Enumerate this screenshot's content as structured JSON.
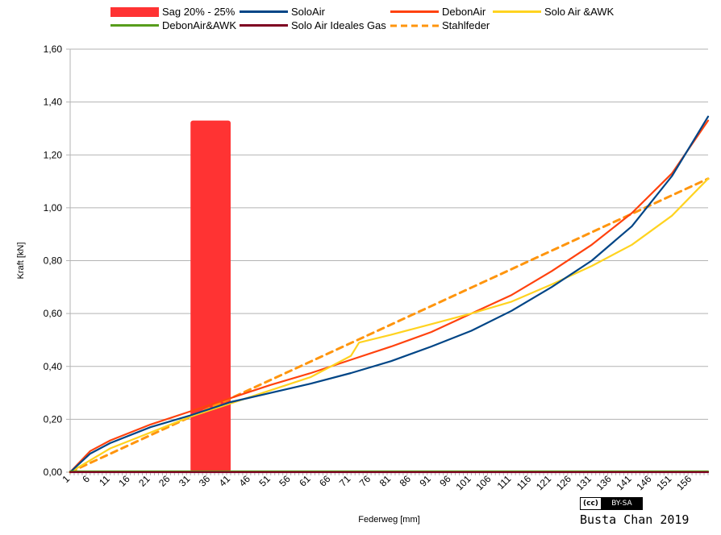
{
  "chart_data": {
    "type": "line",
    "xlabel": "Federweg [mm]",
    "ylabel": "Kraft [kN]",
    "xlim": [
      1,
      160
    ],
    "ylim": [
      0,
      1.6
    ],
    "y_ticks": [
      "0,00",
      "0,20",
      "0,40",
      "0,60",
      "0,80",
      "1,00",
      "1,20",
      "1,40",
      "1,60"
    ],
    "x_ticks": [
      "1",
      "6",
      "11",
      "16",
      "21",
      "26",
      "31",
      "36",
      "41",
      "46",
      "51",
      "56",
      "61",
      "66",
      "71",
      "76",
      "81",
      "86",
      "91",
      "96",
      "101",
      "106",
      "111",
      "116",
      "121",
      "126",
      "131",
      "136",
      "141",
      "146",
      "151",
      "156"
    ],
    "grid": "horizontal",
    "legend_position": "top",
    "sag_band": {
      "name": "Sag 20% - 25%",
      "x_from": 31,
      "x_to": 41,
      "y_to": 1.33,
      "color": "#ff3333"
    },
    "series": [
      {
        "name": "SoloAir",
        "color": "#004586",
        "style": "solid",
        "points": [
          [
            1,
            0.0
          ],
          [
            6,
            0.07
          ],
          [
            11,
            0.11
          ],
          [
            21,
            0.17
          ],
          [
            31,
            0.215
          ],
          [
            41,
            0.265
          ],
          [
            51,
            0.3
          ],
          [
            61,
            0.335
          ],
          [
            71,
            0.375
          ],
          [
            81,
            0.42
          ],
          [
            91,
            0.475
          ],
          [
            101,
            0.535
          ],
          [
            111,
            0.61
          ],
          [
            121,
            0.7
          ],
          [
            131,
            0.8
          ],
          [
            141,
            0.93
          ],
          [
            151,
            1.12
          ],
          [
            157,
            1.27
          ],
          [
            160,
            1.345
          ]
        ]
      },
      {
        "name": "DebonAir",
        "color": "#ff420e",
        "style": "solid",
        "points": [
          [
            1,
            0.0
          ],
          [
            6,
            0.08
          ],
          [
            11,
            0.12
          ],
          [
            21,
            0.18
          ],
          [
            31,
            0.23
          ],
          [
            41,
            0.28
          ],
          [
            51,
            0.33
          ],
          [
            61,
            0.375
          ],
          [
            71,
            0.425
          ],
          [
            81,
            0.475
          ],
          [
            91,
            0.53
          ],
          [
            101,
            0.6
          ],
          [
            111,
            0.67
          ],
          [
            121,
            0.76
          ],
          [
            131,
            0.86
          ],
          [
            141,
            0.98
          ],
          [
            151,
            1.13
          ],
          [
            160,
            1.33
          ]
        ]
      },
      {
        "name": "Solo Air &AWK",
        "color": "#ffd320",
        "style": "solid",
        "points": [
          [
            1,
            0.0
          ],
          [
            11,
            0.09
          ],
          [
            21,
            0.15
          ],
          [
            31,
            0.21
          ],
          [
            41,
            0.26
          ],
          [
            51,
            0.31
          ],
          [
            61,
            0.36
          ],
          [
            71,
            0.44
          ],
          [
            73,
            0.49
          ],
          [
            81,
            0.52
          ],
          [
            91,
            0.56
          ],
          [
            101,
            0.6
          ],
          [
            111,
            0.645
          ],
          [
            121,
            0.71
          ],
          [
            131,
            0.78
          ],
          [
            141,
            0.86
          ],
          [
            151,
            0.97
          ],
          [
            160,
            1.11
          ]
        ]
      },
      {
        "name": "DebonAir&AWK",
        "color": "#579d1c",
        "style": "solid",
        "points": [
          [
            1,
            0.003
          ],
          [
            160,
            0.003
          ]
        ]
      },
      {
        "name": "Solo Air Ideales Gas",
        "color": "#7e0021",
        "style": "solid",
        "points": [
          [
            1,
            0.0
          ],
          [
            160,
            0.0
          ]
        ]
      },
      {
        "name": "Stahlfeder",
        "color": "#ff950e",
        "style": "dashed",
        "points": [
          [
            1,
            0.0
          ],
          [
            160,
            1.11
          ]
        ]
      }
    ]
  },
  "license_badge": {
    "left": "(cc)",
    "right": "BY-SA"
  },
  "credit": "Busta Chan 2019"
}
